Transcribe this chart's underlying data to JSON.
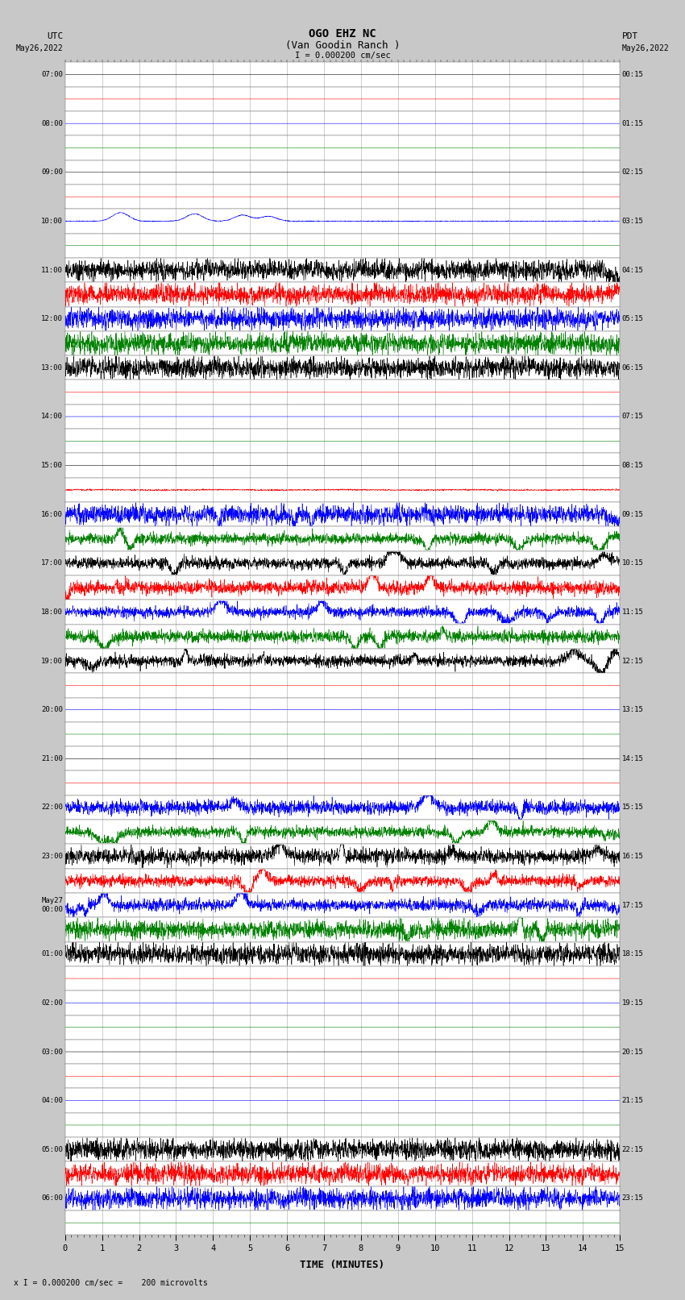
{
  "title_line1": "OGO EHZ NC",
  "title_line2": "(Van Goodin Ranch )",
  "title_line3": "I = 0.000200 cm/sec",
  "xlabel": "TIME (MINUTES)",
  "bottom_note": "x I = 0.000200 cm/sec =    200 microvolts",
  "bg_color": "#c8c8c8",
  "trace_bg": "#ffffff",
  "grid_color": "#808080",
  "fig_width": 8.5,
  "fig_height": 16.13,
  "dpi": 100,
  "left_times_utc": [
    "07:00",
    "",
    "08:00",
    "",
    "09:00",
    "",
    "10:00",
    "",
    "11:00",
    "",
    "12:00",
    "",
    "13:00",
    "",
    "14:00",
    "",
    "15:00",
    "",
    "16:00",
    "",
    "17:00",
    "",
    "18:00",
    "",
    "19:00",
    "",
    "20:00",
    "",
    "21:00",
    "",
    "22:00",
    "",
    "23:00",
    "",
    "May27\n00:00",
    "",
    "01:00",
    "",
    "02:00",
    "",
    "03:00",
    "",
    "04:00",
    "",
    "05:00",
    "",
    "06:00",
    ""
  ],
  "right_times_pdt": [
    "00:15",
    "",
    "01:15",
    "",
    "02:15",
    "",
    "03:15",
    "",
    "04:15",
    "",
    "05:15",
    "",
    "06:15",
    "",
    "07:15",
    "",
    "08:15",
    "",
    "09:15",
    "",
    "10:15",
    "",
    "11:15",
    "",
    "12:15",
    "",
    "13:15",
    "",
    "14:15",
    "",
    "15:15",
    "",
    "16:15",
    "",
    "17:15",
    "",
    "18:15",
    "",
    "19:15",
    "",
    "20:15",
    "",
    "21:15",
    "",
    "22:15",
    "",
    "23:15",
    ""
  ],
  "trace_colors_pattern": [
    "black",
    "red",
    "blue",
    "green"
  ],
  "row_noise": [
    0.003,
    0.003,
    0.003,
    0.003,
    0.003,
    0.008,
    0.15,
    0.003,
    0.35,
    0.35,
    0.35,
    0.35,
    0.25,
    0.003,
    0.003,
    0.003,
    0.003,
    0.1,
    0.8,
    0.8,
    0.8,
    0.8,
    0.5,
    0.5,
    0.5,
    0.003,
    0.003,
    0.003,
    0.003,
    0.003,
    0.8,
    0.8,
    0.8,
    0.8,
    0.6,
    0.6,
    0.4,
    0.003,
    0.003,
    0.003,
    0.003,
    0.003,
    0.003,
    0.003,
    0.25,
    0.35,
    0.25,
    0.003
  ],
  "row_colors": [
    "black",
    "red",
    "blue",
    "green",
    "black",
    "red",
    "blue",
    "green",
    "black",
    "red",
    "blue",
    "green",
    "black",
    "red",
    "blue",
    "green",
    "black",
    "red",
    "blue",
    "green",
    "black",
    "red",
    "blue",
    "green",
    "black",
    "red",
    "blue",
    "green",
    "black",
    "red",
    "blue",
    "green",
    "black",
    "red",
    "blue",
    "green",
    "black",
    "red",
    "blue",
    "green",
    "black",
    "red",
    "blue",
    "green",
    "black",
    "red",
    "blue",
    "green"
  ]
}
